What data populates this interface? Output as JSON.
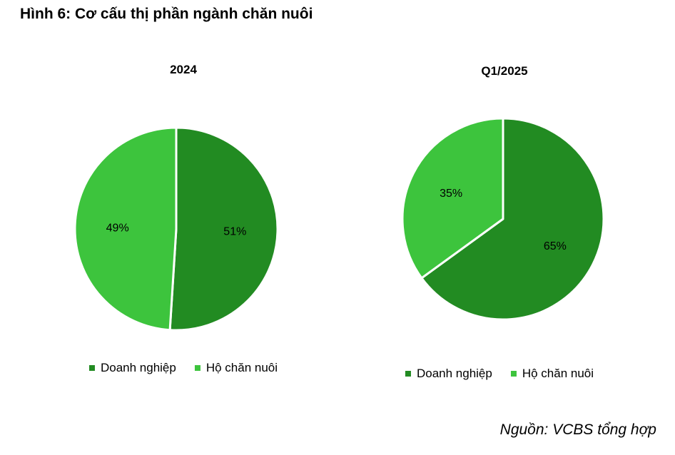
{
  "figure_title": "Hình 6: Cơ cấu thị phần ngành chăn nuôi",
  "source": "Nguồn: VCBS tổng hợp",
  "colors": {
    "doanh_nghiep": "#228B22",
    "ho_chan_nuoi": "#3DC43D",
    "separator": "#ffffff"
  },
  "chart_data": [
    {
      "type": "pie",
      "title": "2024",
      "categories": [
        "Doanh nghiệp",
        "Hộ chăn nuôi"
      ],
      "values": [
        51,
        49
      ],
      "labels": [
        "51%",
        "49%"
      ],
      "legend": [
        "Doanh nghiệp",
        "Hộ chăn nuôi"
      ],
      "legend_position": "bottom"
    },
    {
      "type": "pie",
      "title": "Q1/2025",
      "categories": [
        "Doanh nghiệp",
        "Hộ chăn nuôi"
      ],
      "values": [
        65,
        35
      ],
      "labels": [
        "65%",
        "35%"
      ],
      "legend": [
        "Doanh nghiệp",
        "Hộ chăn nuôi"
      ],
      "legend_position": "bottom"
    }
  ]
}
